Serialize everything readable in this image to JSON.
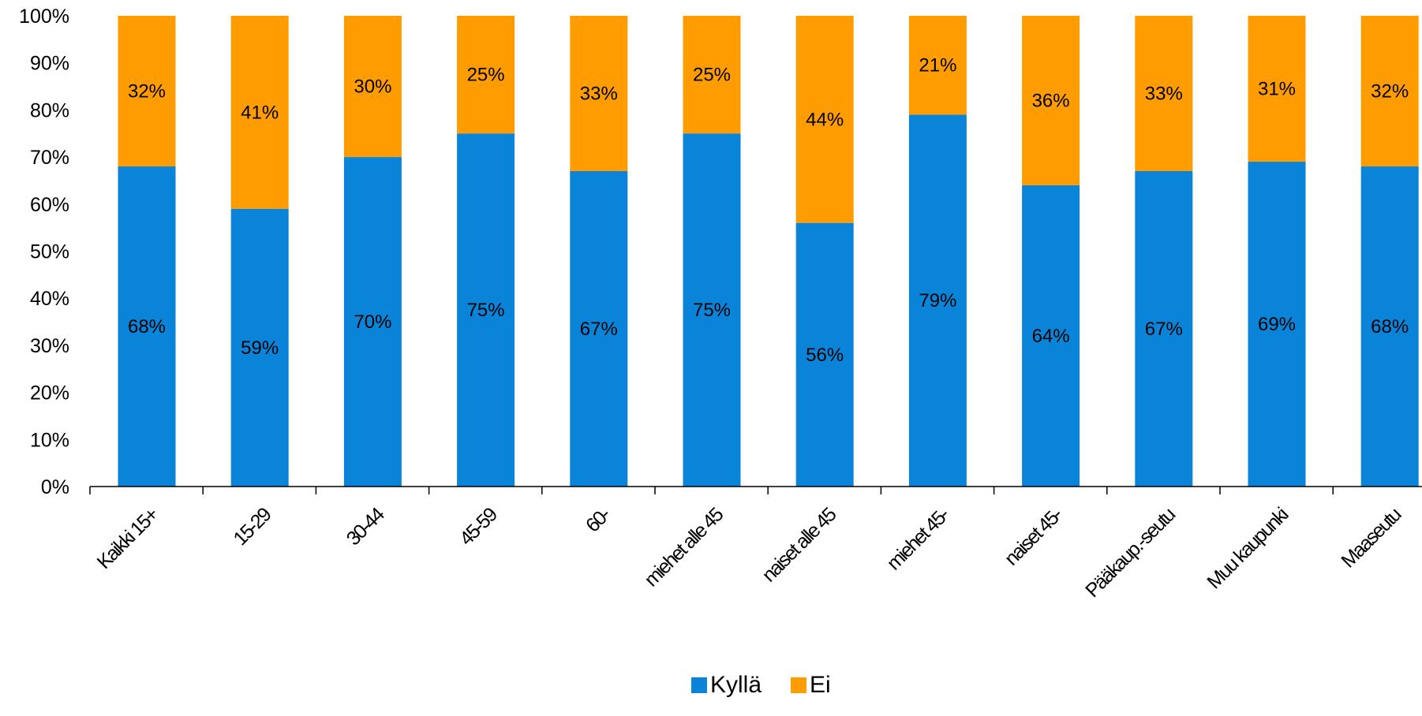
{
  "chart_data": {
    "type": "bar",
    "stacked": true,
    "categories": [
      "Kaikki 15+",
      "15-29",
      "30-44",
      "45-59",
      "60-",
      "miehet alle 45",
      "naiset alle 45",
      "miehet 45-",
      "naiset 45-",
      "Pääkaup.-seutu",
      "Muu kaupunki",
      "Maaseutu"
    ],
    "series": [
      {
        "name": "Kyllä",
        "color": "#0a84d8",
        "values": [
          68,
          59,
          70,
          75,
          67,
          75,
          56,
          79,
          64,
          67,
          69,
          68
        ],
        "labels": [
          "68%",
          "59%",
          "70%",
          "75%",
          "67%",
          "75%",
          "56%",
          "79%",
          "64%",
          "67%",
          "69%",
          "68%"
        ]
      },
      {
        "name": "Ei",
        "color": "#ff9c00",
        "values": [
          32,
          41,
          30,
          25,
          33,
          25,
          44,
          21,
          36,
          33,
          31,
          32
        ],
        "labels": [
          "32%",
          "41%",
          "30%",
          "25%",
          "33%",
          "25%",
          "44%",
          "21%",
          "36%",
          "33%",
          "31%",
          "32%"
        ]
      }
    ],
    "ylim": [
      0,
      100
    ],
    "yticks": [
      0,
      10,
      20,
      30,
      40,
      50,
      60,
      70,
      80,
      90,
      100
    ],
    "ytick_labels": [
      "0%",
      "10%",
      "20%",
      "30%",
      "40%",
      "50%",
      "60%",
      "70%",
      "80%",
      "90%",
      "100%"
    ],
    "grid": false,
    "legend_position": "bottom-center"
  }
}
